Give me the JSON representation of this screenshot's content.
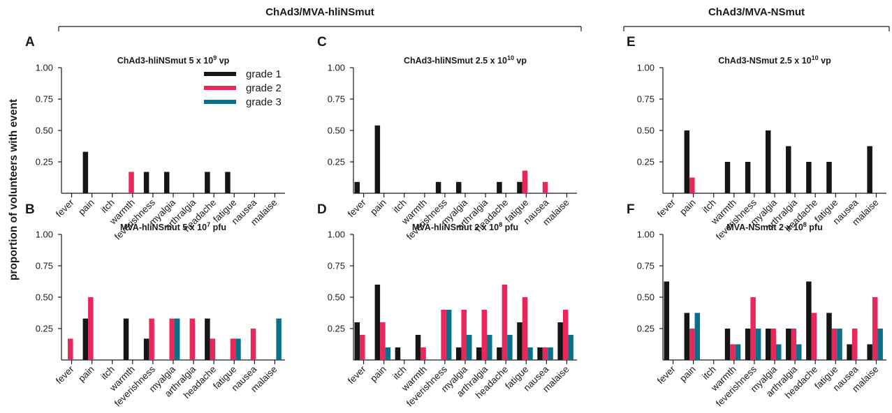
{
  "figure": {
    "ylabel": "proportion of volunteers with event",
    "groups": [
      "ChAd3/MVA-hliNSmut",
      "ChAd3/MVA-NSmut"
    ]
  },
  "legend": {
    "items": [
      {
        "label": "grade 1",
        "color": "#161616"
      },
      {
        "label": "grade 2",
        "color": "#e8275a"
      },
      {
        "label": "grade 3",
        "color": "#08708a"
      }
    ]
  },
  "chart_data": [
    {
      "type": "bar",
      "panel": "A",
      "title": {
        "base": "ChAd3-hliNSmut 5 x 10",
        "sup": "9",
        "tail": " vp"
      },
      "categories": [
        "fever",
        "pain",
        "itch",
        "warmth",
        "feverishness",
        "myalgia",
        "arthralgia",
        "headache",
        "fatigue",
        "nausea",
        "malaise"
      ],
      "yticks": [
        "1.00",
        "0.75",
        "0.50",
        "0.25"
      ],
      "ylim": [
        0,
        1
      ],
      "series": [
        {
          "name": "grade 1",
          "values": [
            0,
            0.33,
            0,
            0,
            0.17,
            0.17,
            0,
            0.17,
            0.17,
            0,
            0
          ]
        },
        {
          "name": "grade 2",
          "values": [
            0,
            0,
            0,
            0.17,
            0,
            0,
            0,
            0,
            0,
            0,
            0
          ]
        },
        {
          "name": "grade 3",
          "values": [
            0,
            0,
            0,
            0,
            0,
            0,
            0,
            0,
            0,
            0,
            0
          ]
        }
      ]
    },
    {
      "type": "bar",
      "panel": "B",
      "title": {
        "base": "MVA-hliNSmut 5 x 10",
        "sup": "7",
        "tail": " pfu"
      },
      "categories": [
        "fever",
        "pain",
        "itch",
        "warmth",
        "feverishness",
        "myalgia",
        "arthralgia",
        "headache",
        "fatigue",
        "nausea",
        "malaise"
      ],
      "yticks": [
        "1.00",
        "0.75",
        "0.50",
        "0.25"
      ],
      "ylim": [
        0,
        1
      ],
      "series": [
        {
          "name": "grade 1",
          "values": [
            0,
            0.33,
            0,
            0.33,
            0.17,
            0,
            0,
            0.33,
            0,
            0,
            0
          ]
        },
        {
          "name": "grade 2",
          "values": [
            0.17,
            0.5,
            0,
            0,
            0.33,
            0.33,
            0.33,
            0.17,
            0.17,
            0.25,
            0
          ]
        },
        {
          "name": "grade 3",
          "values": [
            0,
            0,
            0,
            0,
            0,
            0.33,
            0,
            0,
            0.17,
            0,
            0.33
          ]
        }
      ]
    },
    {
      "type": "bar",
      "panel": "C",
      "title": {
        "base": "ChAd3-hliNSmut 2.5 x 10",
        "sup": "10",
        "tail": " vp"
      },
      "categories": [
        "fever",
        "pain",
        "itch",
        "warmth",
        "feverishness",
        "myalgia",
        "arthralgia",
        "headache",
        "fatigue",
        "nausea",
        "malaise"
      ],
      "yticks": [
        "1.00",
        "0.75",
        "0.50",
        "0.25"
      ],
      "ylim": [
        0,
        1
      ],
      "series": [
        {
          "name": "grade 1",
          "values": [
            0.09,
            0.54,
            0,
            0,
            0.09,
            0.09,
            0,
            0.09,
            0.09,
            0,
            0
          ]
        },
        {
          "name": "grade 2",
          "values": [
            0,
            0,
            0,
            0,
            0,
            0,
            0,
            0,
            0.18,
            0.09,
            0
          ]
        },
        {
          "name": "grade 3",
          "values": [
            0,
            0,
            0,
            0,
            0,
            0,
            0,
            0,
            0,
            0,
            0
          ]
        }
      ]
    },
    {
      "type": "bar",
      "panel": "D",
      "title": {
        "base": "MVA-hliNSmut 2 x 10",
        "sup": "8",
        "tail": " pfu"
      },
      "categories": [
        "fever",
        "pain",
        "itch",
        "warmth",
        "feverishness",
        "myalgia",
        "arthralgia",
        "headache",
        "fatigue",
        "nausea",
        "malaise"
      ],
      "yticks": [
        "1.00",
        "0.75",
        "0.50",
        "0.25"
      ],
      "ylim": [
        0,
        1
      ],
      "series": [
        {
          "name": "grade 1",
          "values": [
            0.3,
            0.6,
            0.1,
            0.2,
            0,
            0.1,
            0.1,
            0.1,
            0.3,
            0.1,
            0.3
          ]
        },
        {
          "name": "grade 2",
          "values": [
            0.2,
            0.3,
            0,
            0.1,
            0.4,
            0.4,
            0.4,
            0.6,
            0.5,
            0.1,
            0.4
          ]
        },
        {
          "name": "grade 3",
          "values": [
            0,
            0.1,
            0,
            0,
            0.4,
            0.2,
            0.2,
            0.2,
            0.1,
            0.1,
            0.2
          ]
        }
      ]
    },
    {
      "type": "bar",
      "panel": "E",
      "title": {
        "base": "ChAd3-NSmut 2.5 x 10",
        "sup": "10",
        "tail": " vp"
      },
      "categories": [
        "fever",
        "pain",
        "itch",
        "warmth",
        "feverishness",
        "myalgia",
        "arthralgia",
        "headache",
        "fatigue",
        "nausea",
        "malaise"
      ],
      "yticks": [
        "1.00",
        "0.75",
        "0.50",
        "0.25"
      ],
      "ylim": [
        0,
        1
      ],
      "series": [
        {
          "name": "grade 1",
          "values": [
            0,
            0.5,
            0,
            0.25,
            0.25,
            0.5,
            0.375,
            0.25,
            0.25,
            0,
            0.375
          ]
        },
        {
          "name": "grade 2",
          "values": [
            0,
            0.125,
            0,
            0,
            0,
            0,
            0,
            0,
            0,
            0,
            0
          ]
        },
        {
          "name": "grade 3",
          "values": [
            0,
            0,
            0,
            0,
            0,
            0,
            0,
            0,
            0,
            0,
            0
          ]
        }
      ]
    },
    {
      "type": "bar",
      "panel": "F",
      "title": {
        "base": "MVA-NSmut 2 x 10",
        "sup": "8",
        "tail": " pfu"
      },
      "categories": [
        "fever",
        "pain",
        "itch",
        "warmth",
        "feverishness",
        "myalgia",
        "arthralgia",
        "headache",
        "fatigue",
        "nausea",
        "malaise"
      ],
      "yticks": [
        "1.00",
        "0.75",
        "0.50",
        "0.25"
      ],
      "ylim": [
        0,
        1
      ],
      "series": [
        {
          "name": "grade 1",
          "values": [
            0.625,
            0.375,
            0,
            0.25,
            0.25,
            0.25,
            0.25,
            0.625,
            0.375,
            0.125,
            0.125
          ]
        },
        {
          "name": "grade 2",
          "values": [
            0,
            0.25,
            0,
            0.125,
            0.5,
            0.25,
            0.25,
            0.375,
            0.25,
            0.25,
            0.5
          ]
        },
        {
          "name": "grade 3",
          "values": [
            0,
            0.375,
            0,
            0.125,
            0.25,
            0.125,
            0.125,
            0,
            0.25,
            0,
            0.25
          ]
        }
      ]
    }
  ]
}
